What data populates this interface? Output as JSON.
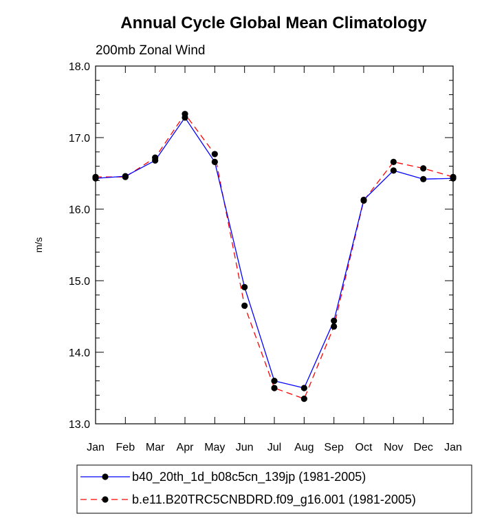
{
  "chart_data": {
    "type": "line",
    "title": "Annual Cycle Global Mean Climatology",
    "subtitle": "200mb Zonal Wind",
    "ylabel": "m/s",
    "xlabel": "",
    "categories": [
      "Jan",
      "Feb",
      "Mar",
      "Apr",
      "May",
      "Jun",
      "Jul",
      "Aug",
      "Sep",
      "Oct",
      "Nov",
      "Dec",
      "Jan"
    ],
    "ylim": [
      13.0,
      18.0
    ],
    "yticks": [
      "13.0",
      "14.0",
      "15.0",
      "16.0",
      "17.0",
      "18.0"
    ],
    "grid": false,
    "legend_position": "bottom",
    "series": [
      {
        "name": "b40_20th_1d_b08c5cn_139jp (1981-2005)",
        "color": "#0000ff",
        "dash": "solid",
        "marker": "filled-circle",
        "values": [
          16.43,
          16.46,
          16.68,
          17.28,
          16.66,
          14.91,
          13.6,
          13.5,
          14.44,
          16.13,
          16.54,
          16.42,
          16.43
        ]
      },
      {
        "name": "b.e11.B20TRC5CNBDRD.f09_g16.001 (1981-2005)",
        "color": "#ff0000",
        "dash": "dashed",
        "marker": "filled-circle",
        "values": [
          16.45,
          16.45,
          16.72,
          17.33,
          16.77,
          14.65,
          13.5,
          13.35,
          14.36,
          16.12,
          16.66,
          16.57,
          16.45
        ]
      }
    ]
  }
}
